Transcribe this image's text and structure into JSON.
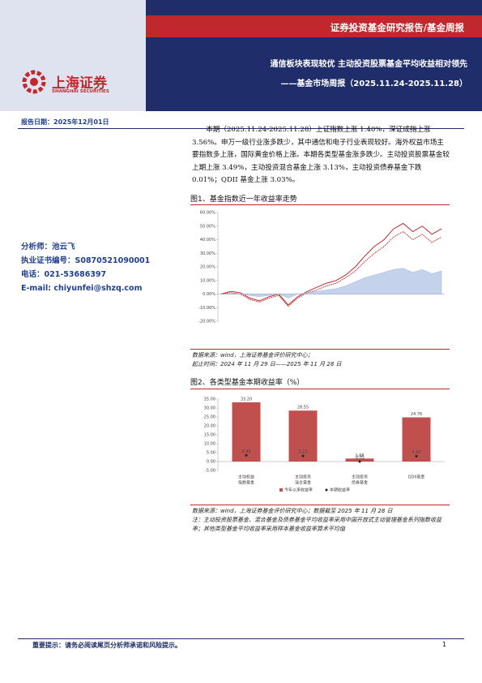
{
  "header": {
    "title": "证券投资基金研究报告/基金周报",
    "headline": "通信板块表现较优 主动投资股票基金平均收益相对领先",
    "subheadline": "——基金市场周报（2025.11.24-2025.11.28）",
    "logo_cn": "上海证券",
    "logo_en": "SHANGHAI SECURITIES"
  },
  "report_date": "报告日期：2025年12月01日",
  "analyst": [
    "分析师：池云飞",
    "执业证书编号：S0870521090001",
    "电话：021-53686397",
    "E-mail: chiyunfei@shzq.com"
  ],
  "body": "本期（2025.11.24-2025.11.28）上证指数上涨 1.40%，深证成指上涨 3.56%。申万一级行业涨多跌少，其中通信和电子行业表现较好。海外权益市场主要指数多上涨，国际黄金价格上涨。本期各类型基金涨多跌少。主动投资股票基金较上期上涨 3.49%，主动投资混合基金上涨 3.13%，主动投资债券基金下跌 0.01%；QDII 基金上涨 3.03%。",
  "chart_data": [
    {
      "type": "line",
      "title": "图1、基金指数近一年收益率走势",
      "ylim": [
        -20,
        60
      ],
      "yticks": [
        {
          "value": 60,
          "label": "60.00%"
        },
        {
          "value": 50,
          "label": "50.00%"
        },
        {
          "value": 40,
          "label": "40.00%"
        },
        {
          "value": 30,
          "label": "30.00%"
        },
        {
          "value": 20,
          "label": "20.00%"
        },
        {
          "value": 10,
          "label": "10.00%"
        },
        {
          "value": 0,
          "label": "0.00%"
        },
        {
          "value": -10,
          "label": "-10.00%"
        },
        {
          "value": -20,
          "label": "-20.00%"
        }
      ],
      "series": [
        {
          "color": "#c0282d",
          "style": "solid",
          "values": [
            0,
            2,
            1,
            -3,
            -5,
            -2,
            0,
            -8,
            -2,
            2,
            5,
            8,
            10,
            14,
            20,
            28,
            35,
            40,
            48,
            52,
            46,
            50,
            44,
            48
          ]
        },
        {
          "color": "#c0282d",
          "style": "dotted",
          "values": [
            0,
            1,
            0,
            -4,
            -6,
            -3,
            -1,
            -9,
            -3,
            1,
            3,
            6,
            8,
            12,
            17,
            24,
            30,
            35,
            42,
            46,
            40,
            44,
            38,
            42
          ]
        },
        {
          "color": "#9db4e0",
          "style": "area",
          "values": [
            0,
            0,
            0,
            -1,
            -2,
            -1,
            0,
            -3,
            0,
            1,
            2,
            3,
            4,
            6,
            9,
            12,
            14,
            16,
            18,
            19,
            16,
            18,
            15,
            17
          ]
        }
      ],
      "source": "数据来源：wind，上海证券基金评价研究中心；",
      "period": "起止时间：2024 年 11 月 29 日——2025 年 11 月 28 日"
    },
    {
      "type": "bar",
      "title": "图2、各类型基金本期收益率（%）",
      "categories": [
        [
          "主动权益",
          "指数基金"
        ],
        [
          "主动投资",
          "混合基金"
        ],
        [
          "主动投资",
          "债券基金"
        ],
        [
          "QDII基金"
        ]
      ],
      "ylim": [
        -5,
        35
      ],
      "yticks": [
        {
          "value": 35,
          "label": "35.00"
        },
        {
          "value": 30,
          "label": "30.00"
        },
        {
          "value": 25,
          "label": "25.00"
        },
        {
          "value": 20,
          "label": "20.00"
        },
        {
          "value": 15,
          "label": "15.00"
        },
        {
          "value": 10,
          "label": "10.00"
        },
        {
          "value": 5,
          "label": "5.00"
        },
        {
          "value": 0,
          "label": "0.00"
        },
        {
          "value": -5,
          "label": "-5.00"
        }
      ],
      "series": [
        {
          "name": "今年以来收益率",
          "color": "#c0504d",
          "values": [
            33.2,
            28.55,
            1.68,
            24.76
          ],
          "value_labels": [
            "33.20",
            "28.55",
            "1.68",
            "24.76"
          ]
        },
        {
          "name": "本期收益率",
          "color": "#222222",
          "values": [
            3.49,
            3.13,
            -0.01,
            3.03
          ],
          "value_labels": [
            "3.49",
            "3.13",
            "-0.01",
            "3.03"
          ]
        }
      ],
      "source": "数据来源：wind，上海证券基金评价研究中心；数据截至 2025 年 11 月 28 日",
      "note": "注：主动投资股票基金、混合基金及债券基金平均收益率采用中国开放式主动管理基金系列指数收益率；其他类型基金平均收益率采用样本基金收益率算术平均值"
    }
  ],
  "footer": {
    "disclaimer": "重要提示：请务必阅读尾页分析师承诺和风险提示。",
    "page": "1"
  }
}
